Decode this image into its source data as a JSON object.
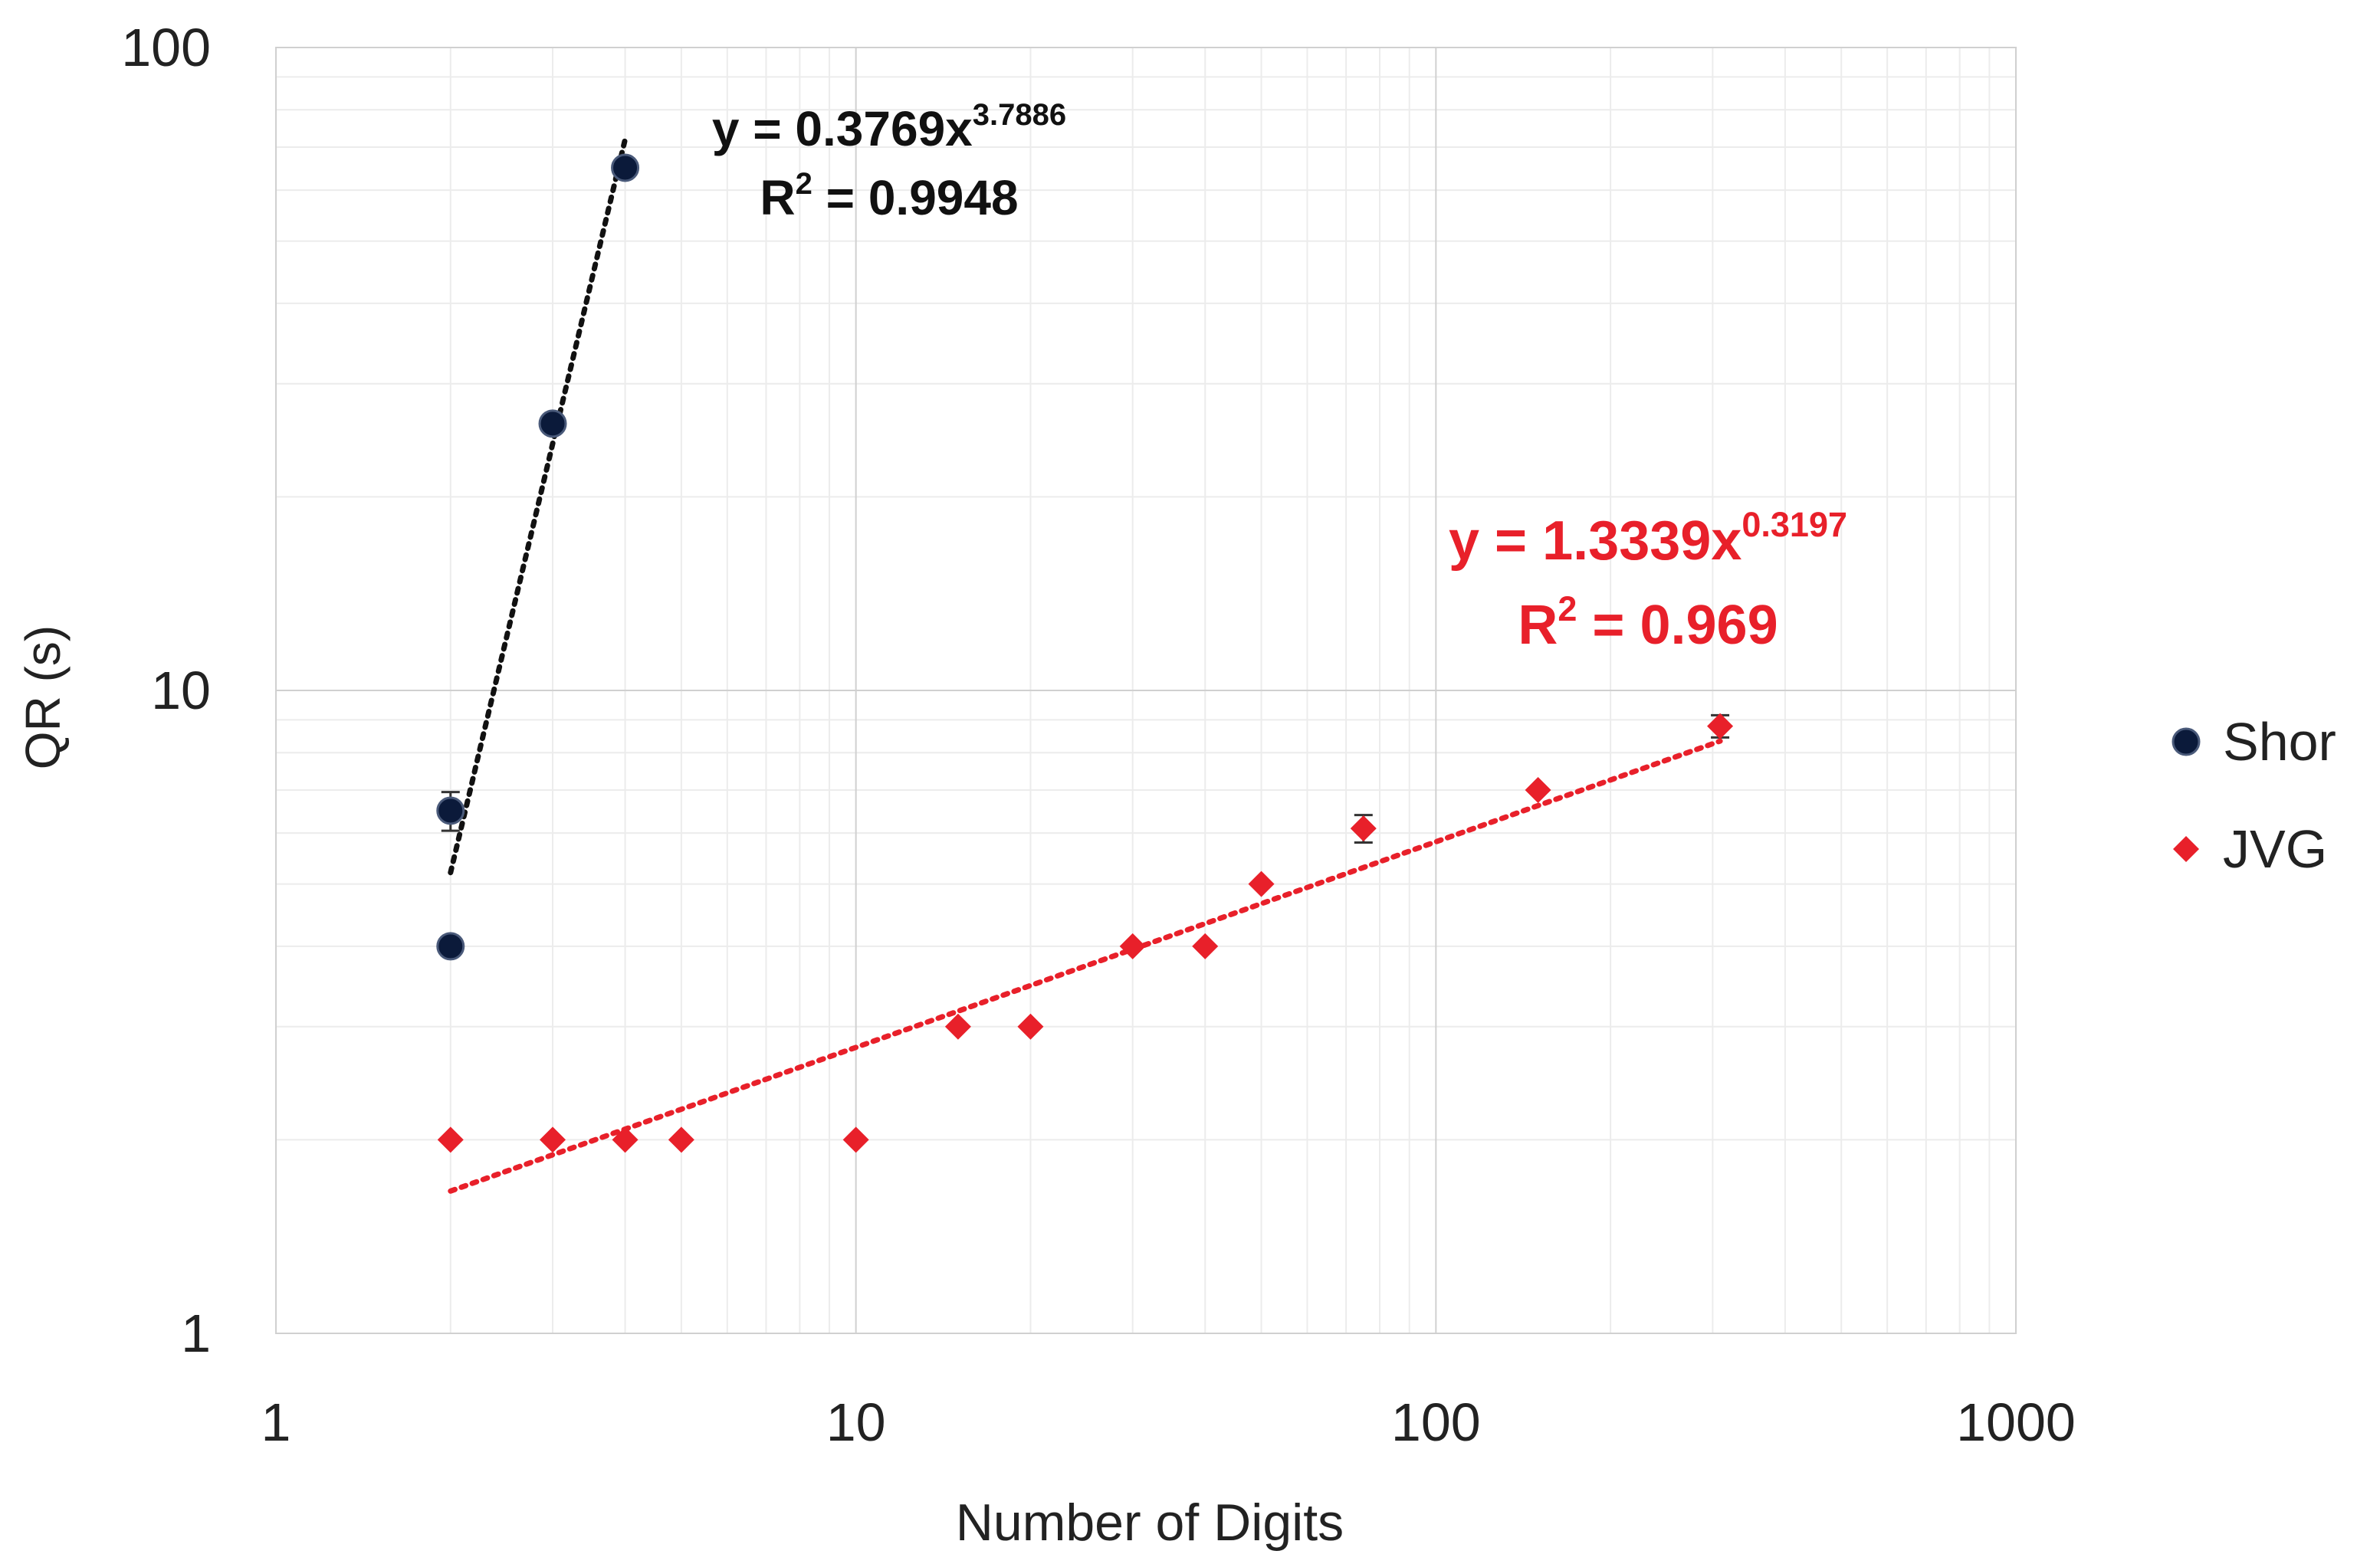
{
  "chart_data": {
    "type": "scatter",
    "xlabel": "Number of Digits",
    "ylabel": "QR (s)",
    "x_scale": "log",
    "y_scale": "log",
    "xlim": [
      1,
      1000
    ],
    "ylim": [
      1,
      100
    ],
    "x_ticks": [
      "1",
      "10",
      "100",
      "1000"
    ],
    "y_ticks": [
      "1",
      "10",
      "100"
    ],
    "grid": true,
    "legend_position": "right",
    "series": [
      {
        "name": "Shor",
        "marker": "circle",
        "color": "#0b1a3a",
        "points": [
          {
            "x": 2,
            "y": 6.5,
            "err": 0.45
          },
          {
            "x": 2,
            "y": 4.0,
            "err": 0
          },
          {
            "x": 3,
            "y": 26.0,
            "err": 0
          },
          {
            "x": 4,
            "y": 65.0,
            "err": 0
          }
        ],
        "trendline": {
          "type": "power",
          "a": 0.3769,
          "b": 3.7886,
          "x_range": [
            2,
            4
          ],
          "color": "#111111",
          "equation": "y = 0.3769x",
          "exponent": "3.7886",
          "r2_label": "R",
          "r2_sup": "2",
          "r2_value": " = 0.9948"
        }
      },
      {
        "name": "JVG",
        "marker": "diamond",
        "color": "#e8202a",
        "points": [
          {
            "x": 2,
            "y": 2.0,
            "err": 0
          },
          {
            "x": 3,
            "y": 2.0,
            "err": 0
          },
          {
            "x": 4,
            "y": 2.0,
            "err": 0
          },
          {
            "x": 5,
            "y": 2.0,
            "err": 0
          },
          {
            "x": 10,
            "y": 2.0,
            "err": 0
          },
          {
            "x": 15,
            "y": 3.0,
            "err": 0
          },
          {
            "x": 20,
            "y": 3.0,
            "err": 0
          },
          {
            "x": 30,
            "y": 4.0,
            "err": 0
          },
          {
            "x": 40,
            "y": 4.0,
            "err": 0
          },
          {
            "x": 50,
            "y": 5.0,
            "err": 0
          },
          {
            "x": 75,
            "y": 6.1,
            "err": 0.3
          },
          {
            "x": 150,
            "y": 7.0,
            "err": 0
          },
          {
            "x": 309,
            "y": 8.8,
            "err": 0.35
          }
        ],
        "trendline": {
          "type": "power",
          "a": 1.3339,
          "b": 0.3197,
          "x_range": [
            2,
            309
          ],
          "color": "#e8202a",
          "equation": "y = 1.3339x",
          "exponent": "0.3197",
          "r2_label": "R",
          "r2_sup": "2",
          "r2_value": " = 0.969"
        }
      }
    ]
  }
}
